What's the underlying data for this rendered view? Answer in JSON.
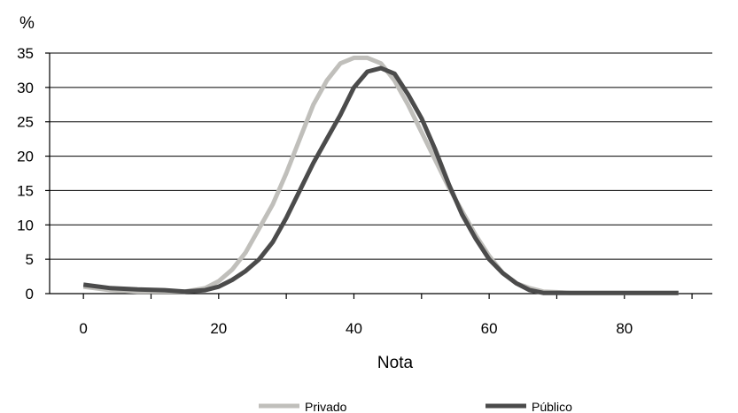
{
  "chart_data": {
    "type": "line",
    "title": "",
    "ylabel": "%",
    "xlabel": "Nota",
    "xlim": [
      -5,
      93
    ],
    "ylim": [
      0,
      35
    ],
    "grid": true,
    "legend_position": "bottom",
    "xticks": [
      0,
      20,
      40,
      60,
      80
    ],
    "yticks": [
      0,
      5,
      10,
      15,
      20,
      25,
      30,
      35
    ],
    "series": [
      {
        "name": "Privado",
        "color": "#c0bfbb",
        "x": [
          0,
          4,
          8,
          12,
          15,
          18,
          20,
          22,
          24,
          26,
          28,
          30,
          32,
          34,
          36,
          38,
          40,
          42,
          44,
          46,
          48,
          50,
          52,
          54,
          56,
          58,
          60,
          62,
          64,
          66,
          68,
          70,
          72,
          76,
          80,
          82,
          84,
          88
        ],
        "y": [
          1.0,
          0.5,
          0.3,
          0.3,
          0.3,
          0.8,
          1.8,
          3.5,
          6.0,
          9.5,
          13.0,
          17.5,
          22.5,
          27.5,
          31.0,
          33.5,
          34.3,
          34.3,
          33.5,
          31.0,
          27.5,
          23.5,
          19.5,
          15.5,
          12.0,
          8.5,
          5.5,
          3.0,
          1.5,
          0.8,
          0.3,
          0.2,
          0.1,
          0.1,
          0.1,
          0.1,
          0.1,
          0.1
        ]
      },
      {
        "name": "Público",
        "color": "#4b4b4b",
        "x": [
          0,
          4,
          8,
          12,
          15,
          18,
          20,
          22,
          24,
          26,
          28,
          30,
          32,
          34,
          36,
          38,
          40,
          42,
          44,
          46,
          48,
          50,
          52,
          54,
          56,
          58,
          60,
          62,
          64,
          66,
          68,
          70,
          72,
          76,
          80,
          82,
          84,
          88
        ],
        "y": [
          1.3,
          0.8,
          0.6,
          0.5,
          0.3,
          0.5,
          1.0,
          2.0,
          3.3,
          5.0,
          7.5,
          11.0,
          15.0,
          19.0,
          22.5,
          26.0,
          30.0,
          32.3,
          32.8,
          32.0,
          29.0,
          25.5,
          21.0,
          16.0,
          11.5,
          8.0,
          5.0,
          3.0,
          1.5,
          0.5,
          0.1,
          0.1,
          0.1,
          0.1,
          0.1,
          0.1,
          0.1,
          0.1
        ]
      }
    ]
  }
}
